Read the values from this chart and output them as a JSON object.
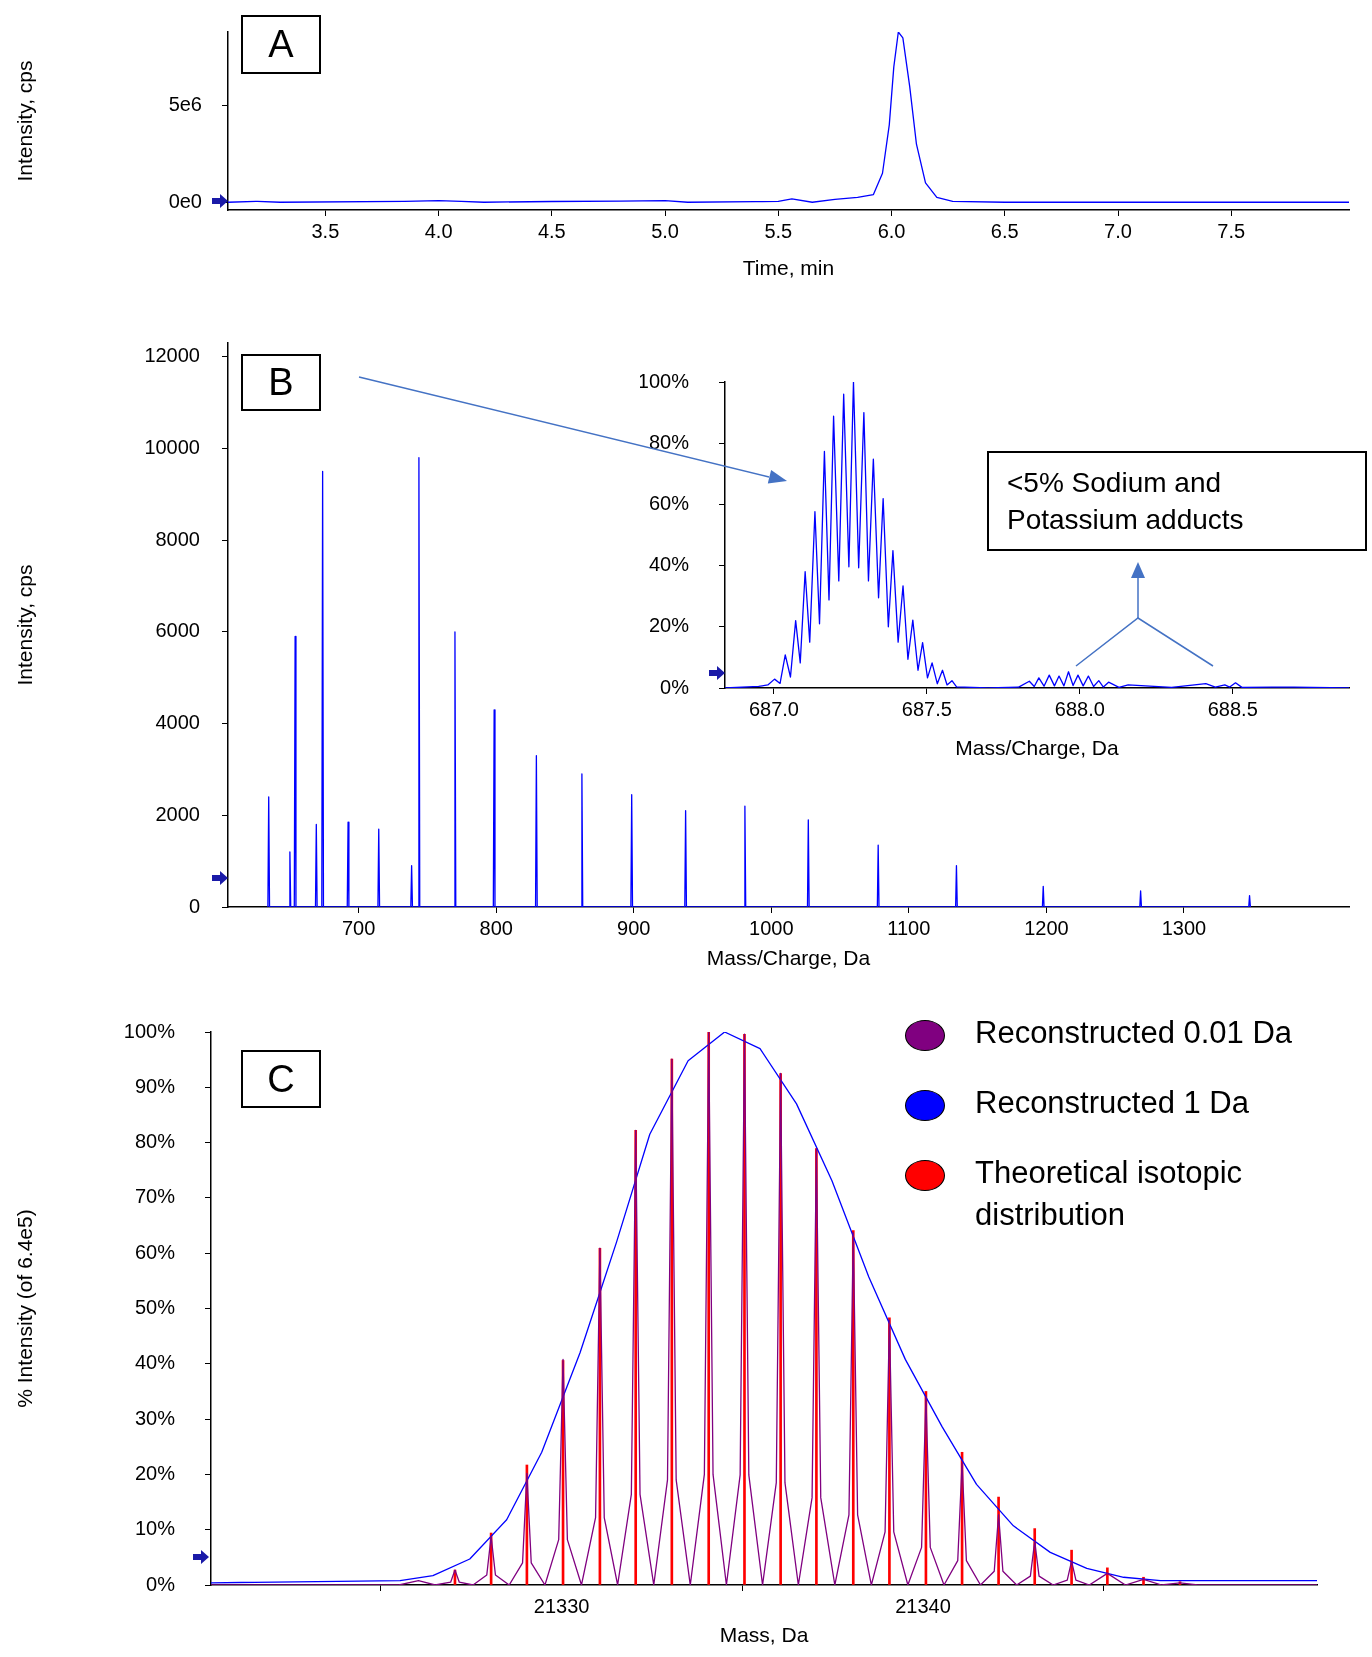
{
  "chart_data": [
    {
      "type": "line",
      "xlabel": "Time, min",
      "ylabel": "Intensity, cps",
      "annotations": [
        "A"
      ],
      "color": "#0000ff",
      "x": [
        3.07,
        3.2,
        3.3,
        3.85,
        4.0,
        4.1,
        4.2,
        4.5,
        4.8,
        5.0,
        5.1,
        5.4,
        5.5,
        5.56,
        5.65,
        5.75,
        5.85,
        5.92,
        5.96,
        5.99,
        6.01,
        6.03,
        6.05,
        6.08,
        6.11,
        6.15,
        6.2,
        6.27,
        6.5,
        8.02
      ],
      "values": [
        0,
        50000,
        0,
        50000,
        80000,
        50000,
        0,
        40000,
        60000,
        80000,
        0,
        30000,
        50000,
        180000,
        0,
        150000,
        250000,
        400000,
        1500000,
        4000000,
        7000000,
        8800000,
        8500000,
        6000000,
        3000000,
        1000000,
        250000,
        50000,
        0,
        0
      ],
      "xlim": [
        3.07,
        8.02
      ],
      "ylim": [
        -400000,
        8800000
      ],
      "xticks": [
        3.5,
        {
          "value": 4,
          "label": "4.0"
        },
        4.5,
        {
          "value": 5,
          "label": "5.0"
        },
        5.5,
        {
          "value": 6,
          "label": "6.0"
        },
        6.5,
        {
          "value": 7,
          "label": "7.0"
        },
        7.5
      ],
      "yticks": [
        {
          "value": 0,
          "label": "0e0"
        },
        {
          "value": 5000000,
          "label": "5e6"
        }
      ],
      "grid": false,
      "legend": false,
      "marker": "none"
    },
    {
      "type": "line",
      "xlabel": "Mass/Charge, Da",
      "ylabel": "Intensity, cps",
      "annotations": [
        "B"
      ],
      "color": "#0000ff",
      "x": [
        634,
        634.6,
        635.2,
        649.4,
        650,
        650.6,
        653.2,
        653.8,
        654.4,
        668.6,
        669.2,
        669.8,
        673.2,
        673.8,
        674.4,
        691.7,
        692.3,
        692.9,
        714,
        714.6,
        715.2,
        737.9,
        738.5,
        739.1,
        743.2,
        743.8,
        744.4,
        769.4,
        770,
        770.6,
        797.9,
        798.5,
        799.1,
        828.6,
        829.2,
        829.8,
        861.7,
        862.3,
        862.9,
        897.9,
        898.5,
        899.1,
        937.1,
        937.7,
        938.3,
        980.2,
        980.8,
        981.4,
        1026.3,
        1026.9,
        1027.5,
        1077.1,
        1077.7,
        1078.3,
        1134,
        1134.6,
        1135.2,
        1197.1,
        1197.7,
        1198.3,
        1267.9,
        1268.5,
        1269.1,
        1347.1,
        1347.7,
        1348.3
      ],
      "values": [
        0,
        2400,
        0,
        0,
        1200,
        0,
        0,
        5900,
        0,
        0,
        1800,
        0,
        0,
        9500,
        0,
        0,
        1850,
        0,
        0,
        1700,
        0,
        0,
        900,
        0,
        0,
        9800,
        0,
        0,
        6000,
        0,
        0,
        4300,
        0,
        0,
        3300,
        0,
        0,
        2900,
        0,
        0,
        2450,
        0,
        0,
        2100,
        0,
        0,
        2200,
        0,
        0,
        1900,
        0,
        0,
        1350,
        0,
        0,
        900,
        0,
        0,
        450,
        0,
        0,
        350,
        0,
        0,
        250,
        0
      ],
      "xlim": [
        605,
        1420
      ],
      "ylim": [
        0,
        12300
      ],
      "xticks": [
        700,
        800,
        900,
        1000,
        1100,
        1200,
        1300
      ],
      "yticks": [
        0,
        2000,
        4000,
        6000,
        8000,
        10000,
        12000
      ],
      "grid": false,
      "legend": false,
      "marker": "none"
    },
    {
      "type": "line",
      "xlabel": "Mass/Charge, Da",
      "annotations": [
        "<5% Sodium and Potassium adducts"
      ],
      "color": "#0000ff",
      "x": [
        686.84,
        686.95,
        686.98,
        687.002,
        687.02,
        687.037,
        687.054,
        687.071,
        687.086,
        687.102,
        687.117,
        687.134,
        687.149,
        687.165,
        687.18,
        687.195,
        687.212,
        687.228,
        687.245,
        687.26,
        687.277,
        687.294,
        687.309,
        687.325,
        687.342,
        687.357,
        687.374,
        687.389,
        687.406,
        687.422,
        687.438,
        687.454,
        687.471,
        687.486,
        687.502,
        687.517,
        687.534,
        687.551,
        687.566,
        687.582,
        687.597,
        687.7,
        687.8,
        687.835,
        687.851,
        687.866,
        687.883,
        687.9,
        687.917,
        687.932,
        687.948,
        687.963,
        687.978,
        687.994,
        688.011,
        688.028,
        688.045,
        688.062,
        688.077,
        688.094,
        688.128,
        688.158,
        688.3,
        688.412,
        688.443,
        688.474,
        688.49,
        688.509,
        688.53,
        688.7,
        688.88
      ],
      "values": [
        0,
        0.5,
        1,
        2.9,
        1.5,
        10.8,
        3.6,
        22,
        8.2,
        38,
        15,
        57.6,
        21,
        77.3,
        28.8,
        88.8,
        35,
        96,
        39.6,
        100,
        39.3,
        90,
        35,
        74.8,
        29.5,
        61.9,
        20,
        44.9,
        15,
        33.4,
        9.4,
        22.2,
        5.8,
        14.8,
        3.3,
        8.2,
        1.4,
        5.8,
        1,
        2.4,
        0.4,
        0,
        0.3,
        2.2,
        0.5,
        3.3,
        0.6,
        4.2,
        0.7,
        3.9,
        0.7,
        5.3,
        0.8,
        4.2,
        0.7,
        3.9,
        0.5,
        2.4,
        0.3,
        1.9,
        0.2,
        1,
        0.2,
        1.4,
        0.3,
        1,
        0.3,
        1.7,
        0.2,
        0.3,
        0
      ],
      "xlim": [
        686.84,
        688.88
      ],
      "ylim": [
        0,
        100
      ],
      "xticks": [
        {
          "value": 687,
          "label": "687.0"
        },
        687.5,
        {
          "value": 688,
          "label": "688.0"
        },
        688.5
      ],
      "yticks": [
        {
          "value": 0,
          "label": "0%"
        },
        {
          "value": 20,
          "label": "20%"
        },
        {
          "value": 40,
          "label": "40%"
        },
        {
          "value": 60,
          "label": "60%"
        },
        {
          "value": 80,
          "label": "80%"
        },
        {
          "value": 100,
          "label": "100%"
        }
      ],
      "grid": false,
      "legend": false,
      "marker": "none"
    },
    {
      "type": "line",
      "xlabel": "Mass, Da",
      "ylabel": "% Intensity (of 6.4e5)",
      "annotations": [
        "C"
      ],
      "series": [
        {
          "name": "Reconstructed 0.01 Da",
          "color": "#800080",
          "x": [
            21320.3,
            21325.5,
            21326.04,
            21326.5,
            21326.93,
            21327.05,
            21327.17,
            21327.55,
            21327.93,
            21328.05,
            21328.17,
            21328.55,
            21328.92,
            21329.04,
            21329.16,
            21329.54,
            21329.92,
            21330.04,
            21330.16,
            21330.55,
            21330.94,
            21331.06,
            21331.18,
            21331.55,
            21331.93,
            21332.05,
            21332.17,
            21332.55,
            21332.93,
            21333.05,
            21333.17,
            21333.56,
            21333.95,
            21334.07,
            21334.19,
            21334.56,
            21334.94,
            21335.06,
            21335.18,
            21335.56,
            21335.94,
            21336.06,
            21336.18,
            21336.55,
            21336.93,
            21337.05,
            21337.17,
            21337.56,
            21337.95,
            21338.07,
            21338.19,
            21338.57,
            21338.95,
            21339.07,
            21339.19,
            21339.58,
            21339.96,
            21340.08,
            21340.2,
            21340.58,
            21340.96,
            21341.08,
            21341.2,
            21341.59,
            21341.97,
            21342.09,
            21342.21,
            21342.59,
            21342.97,
            21343.09,
            21343.21,
            21343.6,
            21343.99,
            21344.11,
            21344.23,
            21344.6,
            21345.1,
            21345.6,
            21346.1,
            21346.6,
            21347.11,
            21347.6,
            21350.9
          ],
          "values": [
            0,
            0,
            0.8,
            0,
            0.5,
            2.7,
            0.5,
            0,
            1.8,
            8.8,
            1.8,
            0,
            4,
            20.2,
            4,
            0,
            8.2,
            40.8,
            8.2,
            0,
            12.2,
            60.9,
            12.2,
            0,
            16.4,
            82.2,
            16.4,
            0,
            19,
            95.1,
            19,
            0,
            20,
            100,
            20,
            0,
            19.9,
            99.6,
            19.9,
            0,
            18.5,
            92.5,
            18.5,
            0,
            15.8,
            78.9,
            15.8,
            0,
            12.7,
            63.7,
            12.7,
            0,
            9.6,
            47.9,
            9.6,
            0,
            6.8,
            34,
            6.8,
            0,
            4.4,
            22.1,
            4.4,
            0,
            2.5,
            12.7,
            2.5,
            0,
            1.6,
            7.9,
            1.6,
            0,
            0.9,
            4.3,
            0.9,
            0,
            2.1,
            0,
            1,
            0,
            0.4,
            0,
            0
          ]
        },
        {
          "name": "Reconstructed 1 Da",
          "color": "#0000ff",
          "x": [
            21320.3,
            21325.53,
            21326.44,
            21327.46,
            21328.48,
            21329.45,
            21330.51,
            21331.52,
            21332.44,
            21333.5,
            21334.51,
            21335.49,
            21336.5,
            21337.48,
            21338.5,
            21339.51,
            21340.53,
            21341.48,
            21342.5,
            21343.52,
            21344.53,
            21345.55,
            21346.57,
            21350.9
          ],
          "values": [
            0.4,
            0.8,
            1.7,
            4.7,
            11.8,
            24,
            42,
            62,
            81.5,
            94.8,
            100,
            97,
            87,
            73.1,
            55.7,
            40.8,
            28.6,
            18.2,
            10.7,
            5.9,
            3,
            1.4,
            0.8,
            0.8
          ]
        },
        {
          "name": "Theoretical isotopic distribution",
          "type": "bar",
          "color": "#ff0000",
          "x": [
            21327.05,
            21328.05,
            21329.04,
            21330.04,
            21331.06,
            21332.05,
            21333.05,
            21334.07,
            21335.06,
            21336.06,
            21337.05,
            21338.07,
            21339.07,
            21340.08,
            21341.08,
            21342.09,
            21343.09,
            21344.11,
            21345.1,
            21346.1,
            21347.11
          ],
          "values": [
            2.7,
            9.4,
            21.7,
            40.6,
            60.9,
            82.2,
            95.1,
            100,
            99.6,
            92.5,
            78.9,
            64.1,
            48.3,
            35,
            24,
            15.9,
            10.2,
            6.3,
            3.1,
            1.4,
            0.6
          ]
        }
      ],
      "xlim": [
        21320.3,
        21350.9
      ],
      "ylim": [
        0,
        100
      ],
      "xticks": [
        21330,
        21340
      ],
      "yticks": [
        {
          "value": 0,
          "label": "0%"
        },
        {
          "value": 10,
          "label": "10%"
        },
        {
          "value": 20,
          "label": "20%"
        },
        {
          "value": 30,
          "label": "30%"
        },
        {
          "value": 40,
          "label": "40%"
        },
        {
          "value": 50,
          "label": "50%"
        },
        {
          "value": 60,
          "label": "60%"
        },
        {
          "value": 70,
          "label": "70%"
        },
        {
          "value": 80,
          "label": "80%"
        },
        {
          "value": 90,
          "label": "90%"
        },
        {
          "value": 100,
          "label": "100%"
        }
      ],
      "grid": false,
      "legend": "top right",
      "marker": "none"
    }
  ]
}
